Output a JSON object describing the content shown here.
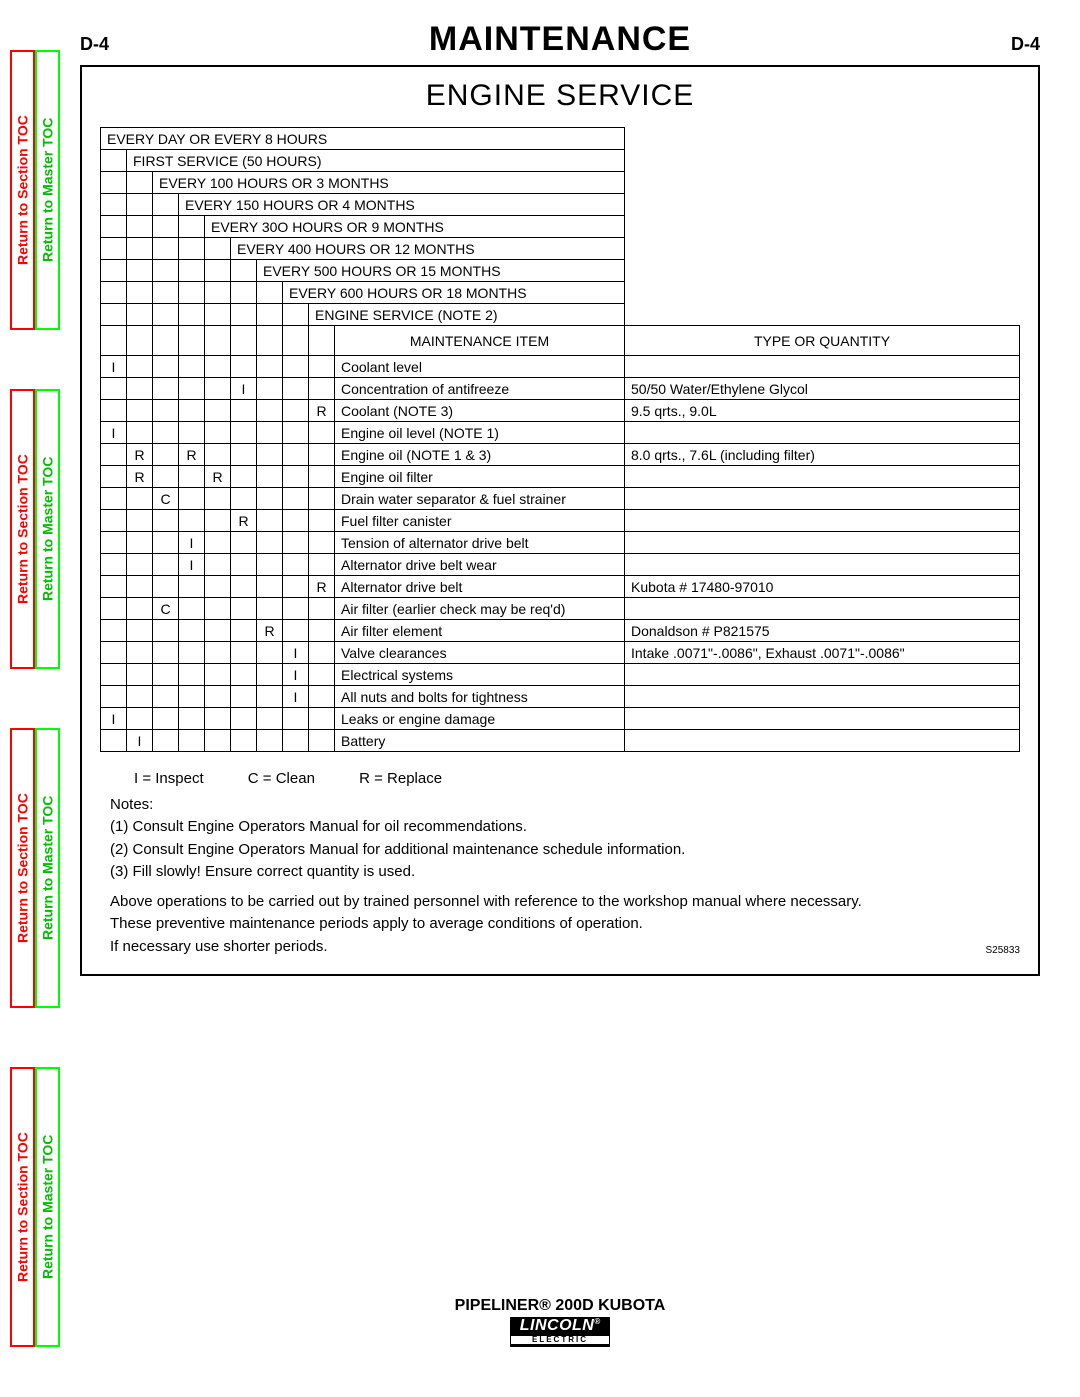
{
  "page_number": "D-4",
  "title": "MAINTENANCE",
  "section_title": "ENGINE SERVICE",
  "nav": {
    "section_label": "Return to Section TOC",
    "master_label": "Return to Master TOC"
  },
  "interval_headers": [
    "EVERY DAY OR EVERY 8 HOURS",
    "FIRST SERVICE (50 HOURS)",
    "EVERY 100 HOURS OR 3 MONTHS",
    "EVERY 150 HOURS OR 4 MONTHS",
    "EVERY 30O HOURS OR 9 MONTHS",
    "EVERY 400 HOURS OR 12 MONTHS",
    "EVERY 500 HOURS OR 15 MONTHS",
    "EVERY 600 HOURS OR 18 MONTHS",
    "ENGINE SERVICE (NOTE 2)"
  ],
  "column_headers": {
    "item": "MAINTENANCE ITEM",
    "qty": "TYPE OR QUANTITY"
  },
  "rows": [
    {
      "c": [
        "I",
        "",
        "",
        "",
        "",
        "",
        "",
        "",
        ""
      ],
      "item": "Coolant level",
      "qty": ""
    },
    {
      "c": [
        "",
        "",
        "",
        "",
        "",
        "I",
        "",
        "",
        ""
      ],
      "item": "Concentration of antifreeze",
      "qty": "50/50 Water/Ethylene Glycol"
    },
    {
      "c": [
        "",
        "",
        "",
        "",
        "",
        "",
        "",
        "",
        "R"
      ],
      "item": "Coolant (NOTE 3)",
      "qty": "9.5 qrts., 9.0L"
    },
    {
      "c": [
        "I",
        "",
        "",
        "",
        "",
        "",
        "",
        "",
        ""
      ],
      "item": "Engine oil level (NOTE 1)",
      "qty": ""
    },
    {
      "c": [
        "",
        "R",
        "",
        "R",
        "",
        "",
        "",
        "",
        ""
      ],
      "item": "Engine oil (NOTE 1 & 3)",
      "qty": "8.0 qrts., 7.6L (including filter)"
    },
    {
      "c": [
        "",
        "R",
        "",
        "",
        "R",
        "",
        "",
        "",
        ""
      ],
      "item": "Engine oil filter",
      "qty": ""
    },
    {
      "c": [
        "",
        "",
        "C",
        "",
        "",
        "",
        "",
        "",
        ""
      ],
      "item": "Drain water separator & fuel strainer",
      "qty": ""
    },
    {
      "c": [
        "",
        "",
        "",
        "",
        "",
        "R",
        "",
        "",
        ""
      ],
      "item": "Fuel filter canister",
      "qty": ""
    },
    {
      "c": [
        "",
        "",
        "",
        "I",
        "",
        "",
        "",
        "",
        ""
      ],
      "item": "Tension of alternator drive belt",
      "qty": ""
    },
    {
      "c": [
        "",
        "",
        "",
        "I",
        "",
        "",
        "",
        "",
        ""
      ],
      "item": "Alternator drive belt wear",
      "qty": ""
    },
    {
      "c": [
        "",
        "",
        "",
        "",
        "",
        "",
        "",
        "",
        "R"
      ],
      "item": "Alternator drive belt",
      "qty": "Kubota # 17480-97010"
    },
    {
      "c": [
        "",
        "",
        "C",
        "",
        "",
        "",
        "",
        "",
        ""
      ],
      "item": "Air filter (earlier check may be req'd)",
      "qty": ""
    },
    {
      "c": [
        "",
        "",
        "",
        "",
        "",
        "",
        "R",
        "",
        ""
      ],
      "item": "Air filter element",
      "qty": "Donaldson # P821575"
    },
    {
      "c": [
        "",
        "",
        "",
        "",
        "",
        "",
        "",
        "I",
        ""
      ],
      "item": "Valve clearances",
      "qty": "Intake .0071\"-.0086\", Exhaust .0071\"-.0086\""
    },
    {
      "c": [
        "",
        "",
        "",
        "",
        "",
        "",
        "",
        "I",
        ""
      ],
      "item": "Electrical systems",
      "qty": ""
    },
    {
      "c": [
        "",
        "",
        "",
        "",
        "",
        "",
        "",
        "I",
        ""
      ],
      "item": "All nuts and bolts for tightness",
      "qty": ""
    },
    {
      "c": [
        "I",
        "",
        "",
        "",
        "",
        "",
        "",
        "",
        ""
      ],
      "item": "Leaks or engine damage",
      "qty": ""
    },
    {
      "c": [
        "",
        "I",
        "",
        "",
        "",
        "",
        "",
        "",
        ""
      ],
      "item": "Battery",
      "qty": ""
    }
  ],
  "legend": {
    "i": "I = Inspect",
    "c": "C = Clean",
    "r": "R = Replace"
  },
  "notes_label": "Notes:",
  "notes": [
    "(1) Consult Engine Operators Manual for oil recommendations.",
    "(2) Consult Engine Operators Manual for additional maintenance schedule information.",
    "(3) Fill slowly! Ensure correct quantity is used."
  ],
  "footnote": [
    "Above operations to be carried out by trained personnel with reference to the workshop manual where necessary.",
    "These preventive maintenance periods apply to average conditions of operation.",
    "If necessary use shorter periods."
  ],
  "doc_code": "S25833",
  "product": "PIPELINER® 200D KUBOTA",
  "logo": {
    "line1": "LINCOLN",
    "line2": "ELECTRIC",
    "reg": "®"
  }
}
